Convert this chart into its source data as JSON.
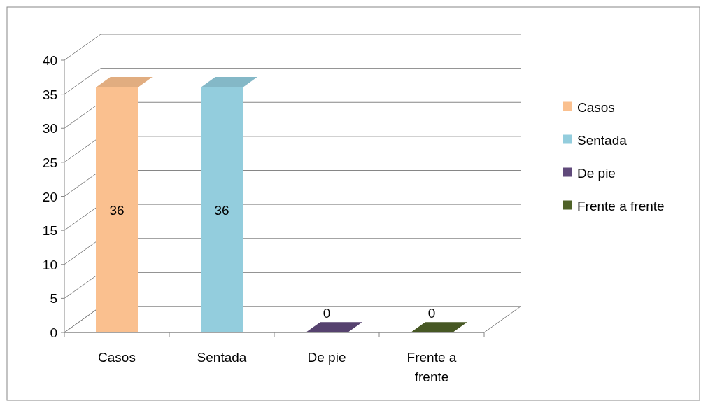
{
  "chart_data": {
    "type": "bar",
    "categories": [
      "Casos",
      "Sentada",
      "De pie",
      "Frente a frente"
    ],
    "series": [
      {
        "name": "Casos",
        "color": "#fac08f",
        "values": [
          36,
          null,
          null,
          null
        ]
      },
      {
        "name": "Sentada",
        "color": "#93cddd",
        "values": [
          null,
          36,
          null,
          null
        ]
      },
      {
        "name": "De pie",
        "color": "#604a7b",
        "values": [
          null,
          null,
          0,
          null
        ]
      },
      {
        "name": "Frente a frente",
        "color": "#4f6228",
        "values": [
          null,
          null,
          null,
          0
        ]
      }
    ],
    "ylim": [
      0,
      40
    ],
    "yticks": [
      0,
      5,
      10,
      15,
      20,
      25,
      30,
      35,
      40
    ],
    "grid": "y",
    "legend": "right",
    "data_labels": true
  }
}
